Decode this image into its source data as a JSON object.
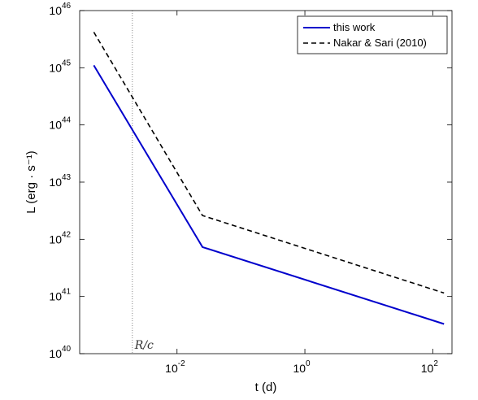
{
  "chart_data": {
    "type": "line",
    "xlabel": "t (d)",
    "ylabel": "L (erg · s⁻¹)",
    "xscale": "log",
    "yscale": "log",
    "xlim": [
      0.0003,
      200
    ],
    "ylim": [
      1e+40,
      1e+46
    ],
    "xticks": [
      {
        "value": 0.01,
        "base": "10",
        "exp": "-2"
      },
      {
        "value": 1,
        "base": "10",
        "exp": "0"
      },
      {
        "value": 100,
        "base": "10",
        "exp": "2"
      }
    ],
    "yticks": [
      {
        "value": 1e+40,
        "base": "10",
        "exp": "40"
      },
      {
        "value": 1e+41,
        "base": "10",
        "exp": "41"
      },
      {
        "value": 1e+42,
        "base": "10",
        "exp": "42"
      },
      {
        "value": 1e+43,
        "base": "10",
        "exp": "43"
      },
      {
        "value": 1e+44,
        "base": "10",
        "exp": "44"
      },
      {
        "value": 1e+45,
        "base": "10",
        "exp": "45"
      },
      {
        "value": 1e+46,
        "base": "10",
        "exp": "46"
      }
    ],
    "grid": false,
    "legend_position": "top-right",
    "series": [
      {
        "name": "this work",
        "color": "#0000cc",
        "style": "solid",
        "x": [
          0.0005,
          0.025,
          150
        ],
        "y": [
          1.1e+45,
          7.3e+41,
          3.3e+40
        ]
      },
      {
        "name": "Nakar & Sari (2010)",
        "color": "#000000",
        "style": "dashed",
        "x": [
          0.0005,
          0.025,
          150
        ],
        "y": [
          4.2e+45,
          2.6e+42,
          1.15e+41
        ]
      }
    ],
    "annotations": [
      {
        "label": "R/c",
        "x": 0.002,
        "style": "vertical-dotted-line"
      }
    ]
  }
}
